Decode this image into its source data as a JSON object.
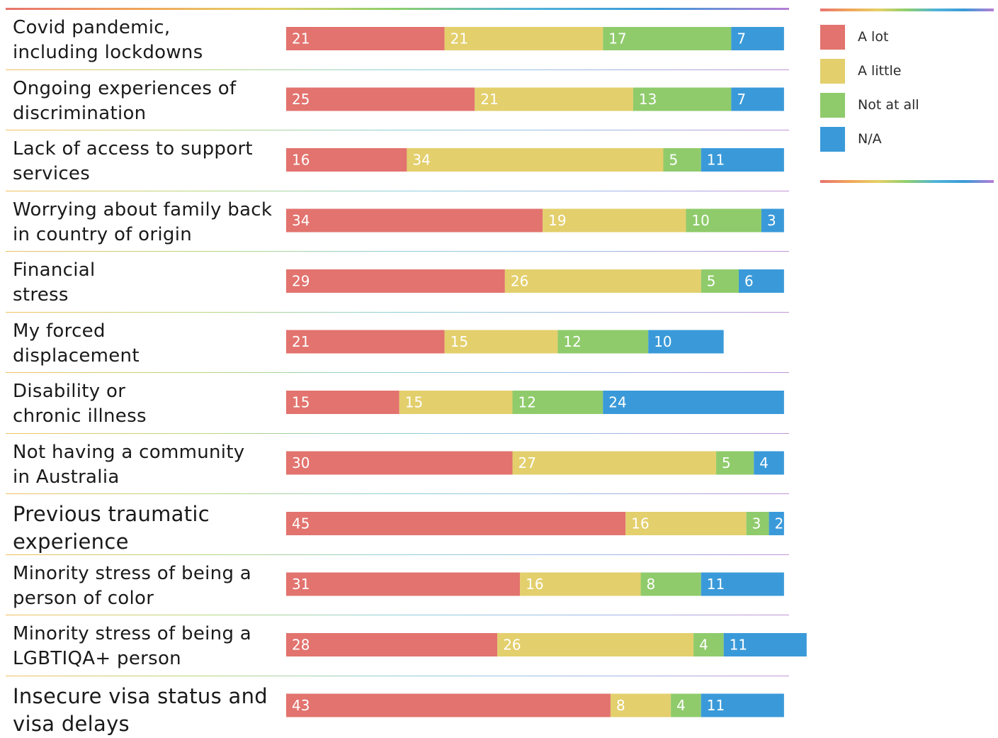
{
  "chart_data": {
    "type": "bar",
    "orientation": "horizontal",
    "stacked": true,
    "categories": [
      "Covid pandemic,\nincluding lockdowns",
      "Ongoing experiences of\ndiscrimination",
      "Lack of access to support\nservices",
      "Worrying about family back\nin country of origin",
      "Financial\nstress",
      "My forced\ndisplacement",
      "Disability or\nchronic illness",
      "Not having a community\nin Australia",
      "Previous traumatic\nexperience",
      "Minority stress of being a\nperson of color",
      "Minority stress of being a\nLGBTIQA+ person",
      "Insecure visa status and\nvisa delays"
    ],
    "series": [
      {
        "name": "A lot",
        "color": "#e2736e",
        "values": [
          21,
          25,
          16,
          34,
          29,
          21,
          15,
          30,
          45,
          31,
          28,
          43
        ]
      },
      {
        "name": "A little",
        "color": "#e3cf6c",
        "values": [
          21,
          21,
          34,
          19,
          26,
          15,
          15,
          27,
          16,
          16,
          26,
          8
        ]
      },
      {
        "name": "Not at all",
        "color": "#8fcb6b",
        "values": [
          17,
          13,
          5,
          10,
          5,
          12,
          12,
          5,
          3,
          8,
          4,
          4
        ]
      },
      {
        "name": "N/A",
        "color": "#3a9ad9",
        "values": [
          7,
          7,
          11,
          3,
          6,
          10,
          24,
          4,
          2,
          11,
          11,
          11
        ]
      }
    ],
    "legend_position": "top-right",
    "grid": false
  }
}
